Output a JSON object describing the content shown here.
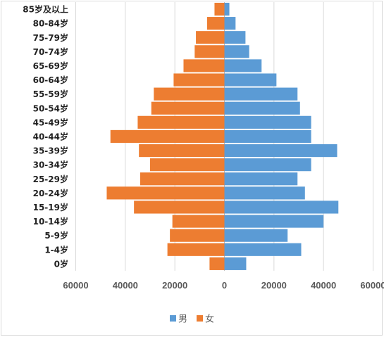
{
  "chart_data": {
    "type": "bar",
    "orientation": "horizontal-population-pyramid",
    "categories": [
      "85岁及以上",
      "80-84岁",
      "75-79岁",
      "70-74岁",
      "65-69岁",
      "60-64岁",
      "55-59岁",
      "50-54岁",
      "45-49岁",
      "40-44岁",
      "35-39岁",
      "30-34岁",
      "25-29岁",
      "20-24岁",
      "15-19岁",
      "10-14岁",
      "5-9岁",
      "1-4岁",
      "0岁"
    ],
    "series": [
      {
        "name": "男",
        "color": "#5b9bd5",
        "side": "right",
        "values": [
          2000,
          4500,
          8500,
          10000,
          15000,
          21000,
          29500,
          30500,
          35000,
          35000,
          45500,
          35000,
          29500,
          32500,
          46000,
          40000,
          25500,
          31000,
          8800
        ]
      },
      {
        "name": "女",
        "color": "#ed7d31",
        "side": "left",
        "values": [
          4000,
          7000,
          11500,
          12000,
          16500,
          20500,
          28500,
          29500,
          35000,
          46000,
          34500,
          30000,
          34000,
          47500,
          36500,
          21000,
          22000,
          23000,
          6000
        ]
      }
    ],
    "xlim": [
      -60000,
      60000
    ],
    "xticks": [
      60000,
      40000,
      20000,
      0,
      20000,
      40000,
      60000
    ],
    "grid": true,
    "legend": "bottom"
  }
}
